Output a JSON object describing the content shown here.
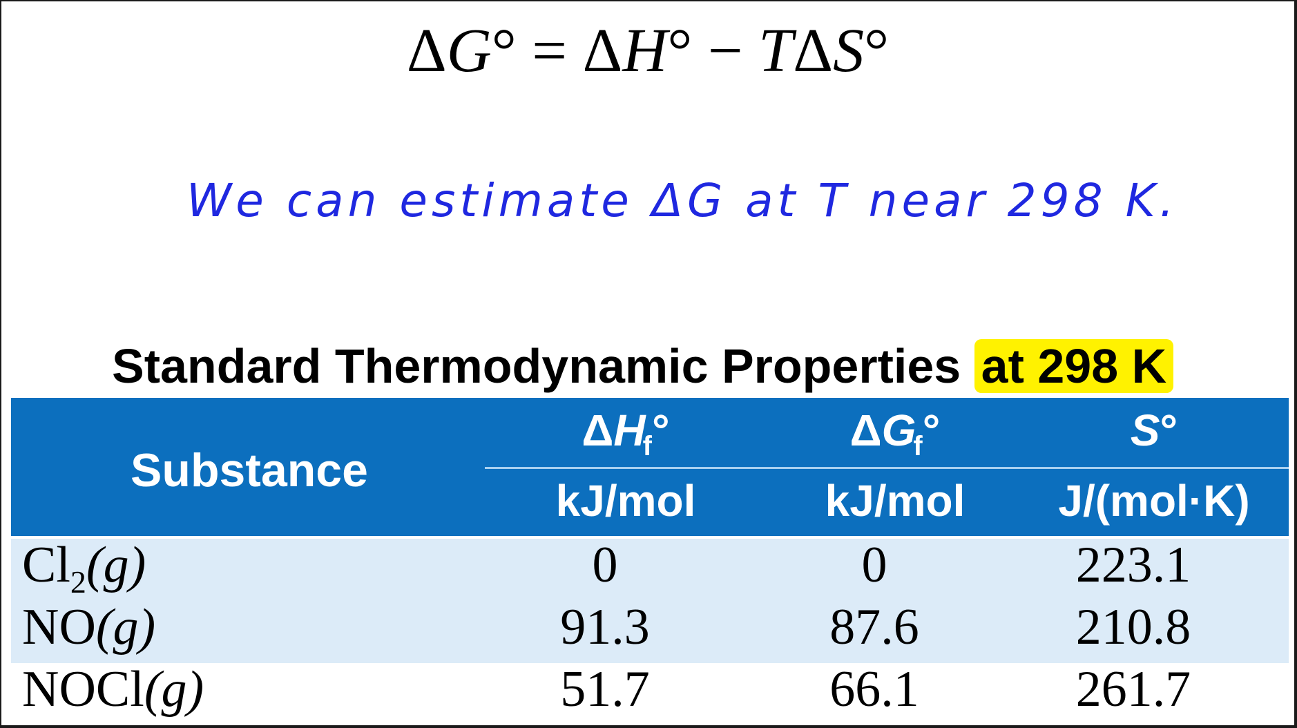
{
  "equation": {
    "delta": "Δ",
    "g": "G",
    "eq_mid": "° = Δ",
    "h": "H",
    "minus": "° − ",
    "t": "T",
    "delta2": "Δ",
    "s": "S",
    "deg": "°"
  },
  "note": "We can estimate ΔG at T near 298 K.",
  "table": {
    "title_main": "Standard Thermodynamic Properties ",
    "title_highlight": "at 298 K",
    "header": {
      "substance": "Substance",
      "dh_delta": "Δ",
      "dh_letter": "H",
      "dh_sub": "f",
      "dh_deg": "°",
      "dh_unit": "kJ/mol",
      "dg_delta": "Δ",
      "dg_letter": "G",
      "dg_sub": "f",
      "dg_deg": "°",
      "dg_unit": "kJ/mol",
      "s_letter": "S",
      "s_deg": "°",
      "s_unit": "J/(mol·K)"
    },
    "rows": [
      {
        "name": "Cl",
        "sub": "2",
        "state": "(g)",
        "dH": "0",
        "dG": "0",
        "S": "223.1"
      },
      {
        "name": "NO",
        "sub": "",
        "state": "(g)",
        "dH": "91.3",
        "dG": "87.6",
        "S": "210.8"
      },
      {
        "name": "NOCl",
        "sub": "",
        "state": "(g)",
        "dH": "51.7",
        "dG": "66.1",
        "S": "261.7"
      }
    ]
  },
  "colors": {
    "header_blue": "#0c6fbe",
    "row_shade": "#dcebf8",
    "note_blue": "#1f28e0",
    "highlight": "#fff200"
  }
}
